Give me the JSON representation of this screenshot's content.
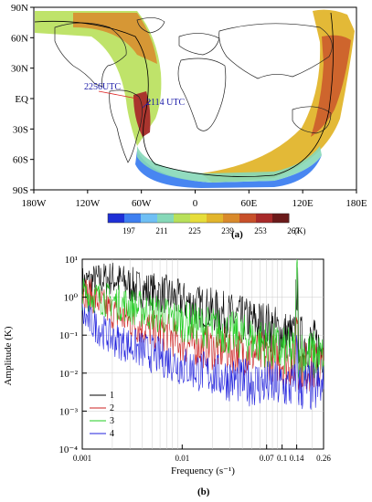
{
  "chart_data": [
    {
      "type": "heatmap",
      "panel_label": "(a)",
      "x_ticks": [
        "180W",
        "120W",
        "60W",
        "0",
        "60E",
        "120E",
        "180E"
      ],
      "y_ticks": [
        "90N",
        "60N",
        "30N",
        "EQ",
        "30S",
        "60S",
        "90S"
      ],
      "annotations": [
        "2256UTC",
        "2114 UTC"
      ],
      "colorbar": {
        "ticks": [
          "197",
          "211",
          "225",
          "239",
          "253",
          "267"
        ],
        "unit": "(K)",
        "colors": [
          "#1e2fd6",
          "#3e7ff0",
          "#6fbff4",
          "#86d8b8",
          "#b8e05a",
          "#e6dd3a",
          "#e2b52c",
          "#d98a2b",
          "#c8502a",
          "#a82a2a",
          "#6b1a1a"
        ]
      }
    },
    {
      "type": "line",
      "panel_label": "(b)",
      "xlabel": "Frequency (s⁻¹)",
      "ylabel": "Amplitude (K)",
      "x_scale": "log",
      "y_scale": "log",
      "xlim": [
        0.001,
        0.26
      ],
      "ylim": [
        0.0001,
        10
      ],
      "x_ticks": [
        "0.001",
        "0.01",
        "0.07",
        "0.1",
        "0.14",
        "0.26"
      ],
      "y_ticks": [
        "10¹",
        "10⁰",
        "10⁻¹",
        "10⁻²",
        "10⁻³",
        "10⁻⁴"
      ],
      "legend_position": "bottom-left",
      "series": [
        {
          "name": "1",
          "color": "#000000",
          "x": [
            0.001,
            0.002,
            0.004,
            0.007,
            0.01,
            0.02,
            0.04,
            0.07,
            0.1,
            0.14,
            0.2,
            0.26
          ],
          "values": [
            3.0,
            4.0,
            2.0,
            1.5,
            1.0,
            0.6,
            0.35,
            0.25,
            0.15,
            2.0,
            0.08,
            0.06
          ]
        },
        {
          "name": "2",
          "color": "#cc2222",
          "x": [
            0.001,
            0.002,
            0.004,
            0.007,
            0.01,
            0.02,
            0.04,
            0.07,
            0.1,
            0.14,
            0.2,
            0.26
          ],
          "values": [
            2.0,
            0.5,
            0.2,
            0.15,
            0.08,
            0.06,
            0.05,
            0.04,
            0.03,
            0.5,
            0.02,
            0.02
          ]
        },
        {
          "name": "3",
          "color": "#22cc22",
          "x": [
            0.001,
            0.002,
            0.004,
            0.007,
            0.01,
            0.02,
            0.04,
            0.07,
            0.1,
            0.14,
            0.2,
            0.26
          ],
          "values": [
            1.5,
            1.0,
            0.6,
            0.4,
            0.3,
            0.2,
            0.12,
            0.08,
            0.05,
            5.0,
            0.04,
            0.03
          ]
        },
        {
          "name": "4",
          "color": "#2222dd",
          "x": [
            0.001,
            0.002,
            0.004,
            0.007,
            0.01,
            0.02,
            0.04,
            0.07,
            0.1,
            0.14,
            0.2,
            0.26
          ],
          "values": [
            0.4,
            0.1,
            0.05,
            0.03,
            0.02,
            0.012,
            0.008,
            0.007,
            0.006,
            0.05,
            0.006,
            0.005
          ]
        }
      ]
    }
  ]
}
